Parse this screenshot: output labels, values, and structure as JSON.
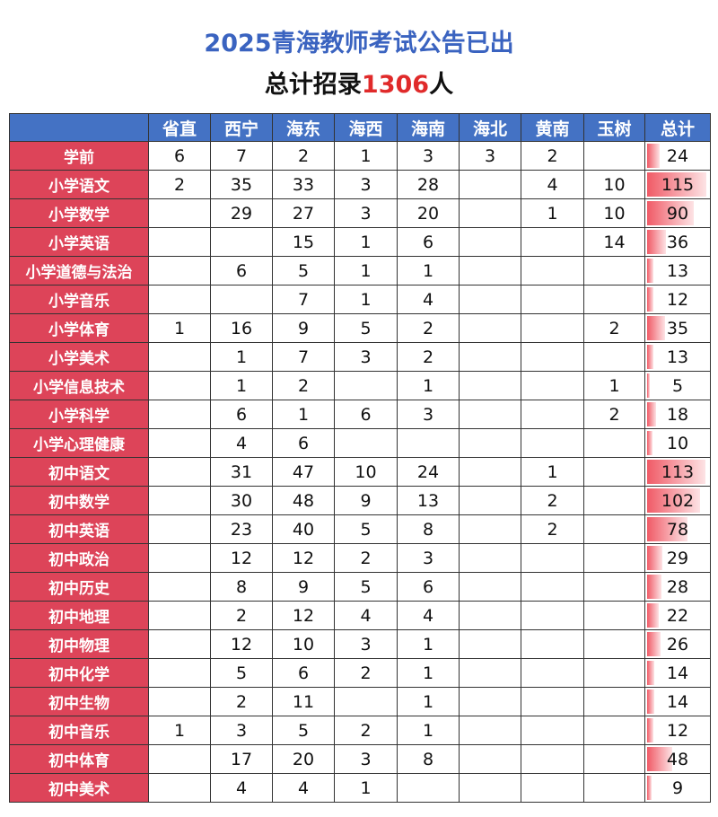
{
  "header": {
    "title": "2025青海教师考试公告已出",
    "subtitle_prefix": "总计招录",
    "subtitle_number": "1306",
    "subtitle_suffix": "人"
  },
  "table": {
    "columns": [
      "",
      "省直",
      "西宁",
      "海东",
      "海西",
      "海南",
      "海北",
      "黄南",
      "玉树",
      "总计"
    ],
    "bar_color": "#f05a66",
    "rows": [
      {
        "label": "学前",
        "values": [
          "6",
          "7",
          "2",
          "1",
          "3",
          "3",
          "2",
          ""
        ],
        "total": 24
      },
      {
        "label": "小学语文",
        "values": [
          "2",
          "35",
          "33",
          "3",
          "28",
          "",
          "4",
          "10"
        ],
        "total": 115
      },
      {
        "label": "小学数学",
        "values": [
          "",
          "29",
          "27",
          "3",
          "20",
          "",
          "1",
          "10"
        ],
        "total": 90
      },
      {
        "label": "小学英语",
        "values": [
          "",
          "",
          "15",
          "1",
          "6",
          "",
          "",
          "14"
        ],
        "total": 36
      },
      {
        "label": "小学道德与法治",
        "values": [
          "",
          "6",
          "5",
          "1",
          "1",
          "",
          "",
          ""
        ],
        "total": 13
      },
      {
        "label": "小学音乐",
        "values": [
          "",
          "",
          "7",
          "1",
          "4",
          "",
          "",
          ""
        ],
        "total": 12
      },
      {
        "label": "小学体育",
        "values": [
          "1",
          "16",
          "9",
          "5",
          "2",
          "",
          "",
          "2"
        ],
        "total": 35
      },
      {
        "label": "小学美术",
        "values": [
          "",
          "1",
          "7",
          "3",
          "2",
          "",
          "",
          ""
        ],
        "total": 13
      },
      {
        "label": "小学信息技术",
        "values": [
          "",
          "1",
          "2",
          "",
          "1",
          "",
          "",
          "1"
        ],
        "total": 5
      },
      {
        "label": "小学科学",
        "values": [
          "",
          "6",
          "1",
          "6",
          "3",
          "",
          "",
          "2"
        ],
        "total": 18
      },
      {
        "label": "小学心理健康",
        "values": [
          "",
          "4",
          "6",
          "",
          "",
          "",
          "",
          ""
        ],
        "total": 10
      },
      {
        "label": "初中语文",
        "values": [
          "",
          "31",
          "47",
          "10",
          "24",
          "",
          "1",
          ""
        ],
        "total": 113
      },
      {
        "label": "初中数学",
        "values": [
          "",
          "30",
          "48",
          "9",
          "13",
          "",
          "2",
          ""
        ],
        "total": 102
      },
      {
        "label": "初中英语",
        "values": [
          "",
          "23",
          "40",
          "5",
          "8",
          "",
          "2",
          ""
        ],
        "total": 78
      },
      {
        "label": "初中政治",
        "values": [
          "",
          "12",
          "12",
          "2",
          "3",
          "",
          "",
          ""
        ],
        "total": 29
      },
      {
        "label": "初中历史",
        "values": [
          "",
          "8",
          "9",
          "5",
          "6",
          "",
          "",
          ""
        ],
        "total": 28
      },
      {
        "label": "初中地理",
        "values": [
          "",
          "2",
          "12",
          "4",
          "4",
          "",
          "",
          ""
        ],
        "total": 22
      },
      {
        "label": "初中物理",
        "values": [
          "",
          "12",
          "10",
          "3",
          "1",
          "",
          "",
          ""
        ],
        "total": 26
      },
      {
        "label": "初中化学",
        "values": [
          "",
          "5",
          "6",
          "2",
          "1",
          "",
          "",
          ""
        ],
        "total": 14
      },
      {
        "label": "初中生物",
        "values": [
          "",
          "2",
          "11",
          "",
          "1",
          "",
          "",
          ""
        ],
        "total": 14
      },
      {
        "label": "初中音乐",
        "values": [
          "1",
          "3",
          "5",
          "2",
          "1",
          "",
          "",
          ""
        ],
        "total": 12
      },
      {
        "label": "初中体育",
        "values": [
          "",
          "17",
          "20",
          "3",
          "8",
          "",
          "",
          ""
        ],
        "total": 48
      },
      {
        "label": "初中美术",
        "values": [
          "",
          "4",
          "4",
          "1",
          "",
          "",
          "",
          ""
        ],
        "total": 9
      }
    ]
  }
}
